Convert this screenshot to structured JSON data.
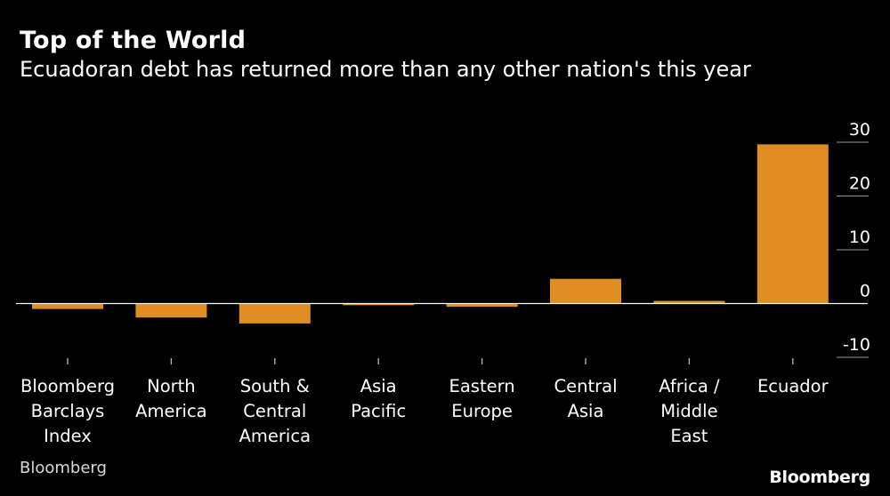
{
  "header": {
    "title": "Top of the World",
    "subtitle": "Ecuadoran debt has returned more than any other nation's this year"
  },
  "footer": {
    "source": "Bloomberg",
    "brand": "Bloomberg"
  },
  "colors": {
    "bar": "#e08e24",
    "axis": "#ffffff",
    "tick_line": "#9a9a9a",
    "background": "#000000"
  },
  "chart_data": {
    "type": "bar",
    "title": "Top of the World",
    "subtitle": "Ecuadoran debt has returned more than any other nation's this year",
    "categories": [
      "Bloomberg Barclays Index",
      "North America",
      "South & Central America",
      "Asia Pacific",
      "Eastern Europe",
      "Central Asia",
      "Africa / Middle East",
      "Ecuador"
    ],
    "category_lines": [
      [
        "Bloomberg",
        "Barclays",
        "Index"
      ],
      [
        "North",
        "America"
      ],
      [
        "South &",
        "Central",
        "America"
      ],
      [
        "Asia",
        "Pacific"
      ],
      [
        "Eastern",
        "Europe"
      ],
      [
        "Central",
        "Asia"
      ],
      [
        "Africa /",
        "Middle",
        "East"
      ],
      [
        "Ecuador"
      ]
    ],
    "values": [
      -1,
      -2.6,
      -3.7,
      -0.3,
      -0.6,
      4.6,
      0.5,
      29.6
    ],
    "ylim": [
      -10,
      30
    ],
    "yticks": [
      -10,
      0,
      10,
      20,
      30
    ],
    "ytick_labels": [
      "-10",
      "0",
      "10",
      "20",
      "30"
    ],
    "xlabel": "",
    "ylabel": "",
    "grid": false,
    "y_axis_side": "right"
  }
}
